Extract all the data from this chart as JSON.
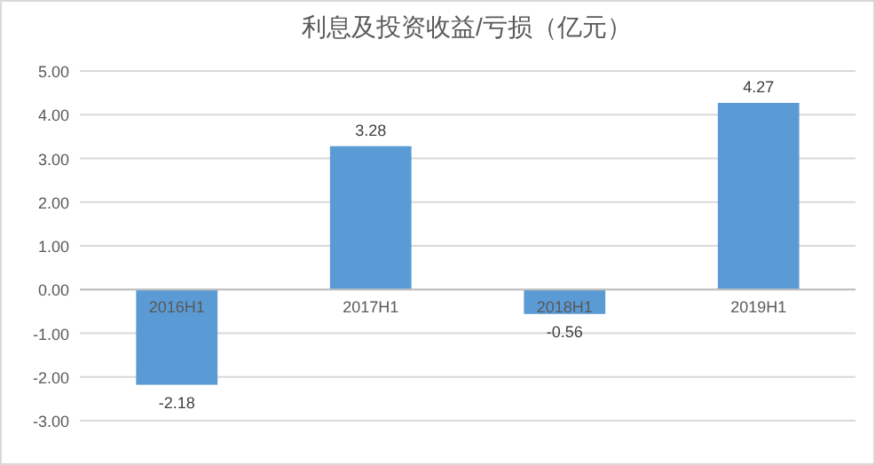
{
  "chart_data": {
    "type": "bar",
    "title": "利息及投资收益/亏损（亿元）",
    "categories": [
      "2016H1",
      "2017H1",
      "2018H1",
      "2019H1"
    ],
    "values": [
      -2.18,
      3.28,
      -0.56,
      4.27
    ],
    "color": "#5b9bd5",
    "ylim": [
      -3,
      5
    ],
    "yticks": [
      {
        "value": -3,
        "label": "-3.00"
      },
      {
        "value": -2,
        "label": "-2.00"
      },
      {
        "value": -1,
        "label": "-1.00"
      },
      {
        "value": 0,
        "label": "0.00"
      },
      {
        "value": 1,
        "label": "1.00"
      },
      {
        "value": 2,
        "label": "2.00"
      },
      {
        "value": 3,
        "label": "3.00"
      },
      {
        "value": 4,
        "label": "4.00"
      },
      {
        "value": 5,
        "label": "5.00"
      }
    ],
    "grid": "y",
    "data_labels": true
  }
}
